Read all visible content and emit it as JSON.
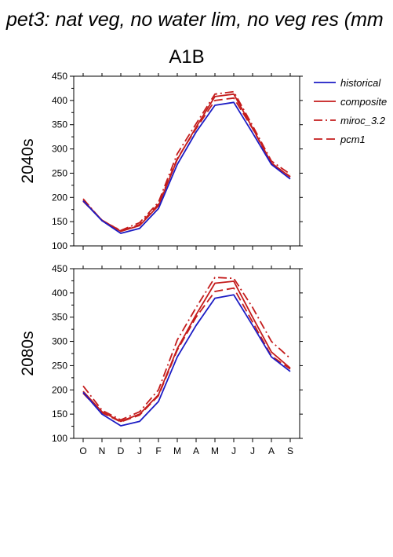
{
  "figure": {
    "title": "pet3: nat veg, no water lim, no veg res (mm",
    "subtitle": "A1B"
  },
  "legend": [
    {
      "label": "historical",
      "color": "#1c1cc4",
      "dash": "solid"
    },
    {
      "label": "composite",
      "color": "#c41c1c",
      "dash": "solid"
    },
    {
      "label": "miroc_3.2",
      "color": "#c41c1c",
      "dash": "dashdot"
    },
    {
      "label": "pcm1",
      "color": "#c41c1c",
      "dash": "dash"
    }
  ],
  "chart_data": [
    {
      "type": "line",
      "row_label": "2040s",
      "categories": [
        "O",
        "N",
        "D",
        "J",
        "F",
        "M",
        "A",
        "M",
        "J",
        "J",
        "A",
        "S"
      ],
      "ylim": [
        100,
        450
      ],
      "yticks": [
        100,
        150,
        200,
        250,
        300,
        350,
        400,
        450
      ],
      "show_x_tick_labels": false,
      "series": [
        {
          "name": "historical",
          "color": "#1c1cc4",
          "dash": "solid",
          "values": [
            193,
            152,
            126,
            136,
            177,
            268,
            335,
            390,
            396,
            333,
            268,
            238
          ]
        },
        {
          "name": "composite",
          "color": "#c41c1c",
          "dash": "solid",
          "values": [
            194,
            153,
            130,
            142,
            183,
            278,
            345,
            408,
            413,
            343,
            271,
            242
          ]
        },
        {
          "name": "miroc_3.2",
          "color": "#c41c1c",
          "dash": "dashdot",
          "values": [
            197,
            152,
            132,
            148,
            190,
            290,
            352,
            413,
            418,
            348,
            275,
            248
          ]
        },
        {
          "name": "pcm1",
          "color": "#c41c1c",
          "dash": "dash",
          "values": [
            192,
            153,
            131,
            144,
            186,
            280,
            342,
            400,
            405,
            342,
            270,
            243
          ]
        }
      ]
    },
    {
      "type": "line",
      "row_label": "2080s",
      "categories": [
        "O",
        "N",
        "D",
        "J",
        "F",
        "M",
        "A",
        "M",
        "J",
        "J",
        "A",
        "S"
      ],
      "ylim": [
        100,
        450
      ],
      "yticks": [
        100,
        150,
        200,
        250,
        300,
        350,
        400,
        450
      ],
      "show_x_tick_labels": true,
      "series": [
        {
          "name": "historical",
          "color": "#1c1cc4",
          "dash": "solid",
          "values": [
            195,
            150,
            126,
            135,
            176,
            268,
            333,
            389,
            396,
            333,
            268,
            238
          ]
        },
        {
          "name": "composite",
          "color": "#c41c1c",
          "dash": "solid",
          "values": [
            197,
            155,
            135,
            150,
            190,
            285,
            355,
            420,
            424,
            350,
            278,
            245
          ]
        },
        {
          "name": "miroc_3.2",
          "color": "#c41c1c",
          "dash": "dashdot",
          "values": [
            208,
            158,
            138,
            155,
            200,
            303,
            370,
            432,
            430,
            370,
            300,
            265
          ]
        },
        {
          "name": "pcm1",
          "color": "#c41c1c",
          "dash": "dash",
          "values": [
            193,
            153,
            134,
            148,
            188,
            282,
            350,
            403,
            410,
            340,
            270,
            243
          ]
        }
      ]
    }
  ]
}
